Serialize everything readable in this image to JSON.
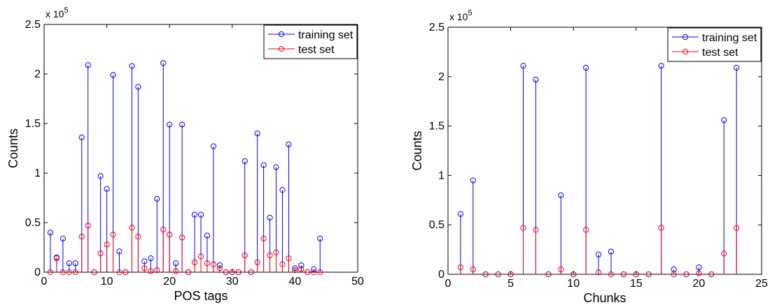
{
  "colors": {
    "training": "#0000ff",
    "test": "#ff0000",
    "axis": "#000000"
  },
  "chart_data": [
    {
      "type": "stem",
      "xlabel": "POS tags",
      "ylabel": "Counts",
      "xlim": [
        0,
        50
      ],
      "ylim": [
        0,
        250000
      ],
      "xticks": [
        0,
        10,
        20,
        30,
        40,
        50
      ],
      "xtick_labels": [
        "0",
        "10",
        "20",
        "30",
        "40",
        "50"
      ],
      "yticks": [
        0,
        50000,
        100000,
        150000,
        200000,
        250000
      ],
      "ytick_labels": [
        "0",
        "0.5",
        "1",
        "1.5",
        "2",
        "2.5"
      ],
      "y_multiplier_base": "x 10",
      "y_multiplier_exp": "5",
      "grid": false,
      "legend_position": "top-right",
      "series": [
        {
          "name": "training set",
          "color": "#0000ff",
          "x": [
            1,
            2,
            3,
            4,
            5,
            6,
            7,
            8,
            9,
            10,
            11,
            12,
            13,
            14,
            15,
            16,
            17,
            18,
            19,
            20,
            21,
            22,
            23,
            24,
            25,
            26,
            27,
            28,
            29,
            30,
            31,
            32,
            33,
            34,
            35,
            36,
            37,
            38,
            39,
            40,
            41,
            42,
            43,
            44
          ],
          "y": [
            40000,
            15000,
            34000,
            9000,
            9000,
            136000,
            209000,
            0,
            97000,
            84000,
            199000,
            21000,
            0,
            208000,
            187000,
            11000,
            14000,
            74000,
            211000,
            149000,
            9000,
            149000,
            0,
            58000,
            58000,
            37000,
            127000,
            7000,
            0,
            0,
            0,
            112000,
            0,
            140000,
            108000,
            55000,
            106000,
            83000,
            129000,
            4000,
            7000,
            0,
            3000,
            34000
          ]
        },
        {
          "name": "test set",
          "color": "#ff0000",
          "x": [
            1,
            2,
            3,
            4,
            5,
            6,
            7,
            8,
            9,
            10,
            11,
            12,
            13,
            14,
            15,
            16,
            17,
            18,
            19,
            20,
            21,
            22,
            23,
            24,
            25,
            26,
            27,
            28,
            29,
            30,
            31,
            32,
            33,
            34,
            35,
            36,
            37,
            38,
            39,
            40,
            41,
            42,
            43,
            44
          ],
          "y": [
            0,
            14000,
            0,
            0,
            0,
            36000,
            47000,
            0,
            19000,
            28000,
            38000,
            0,
            0,
            45000,
            36000,
            4000,
            1000,
            2000,
            43000,
            38000,
            1000,
            35000,
            0,
            10000,
            16000,
            9000,
            8000,
            4000,
            0,
            0,
            0,
            17000,
            0,
            10000,
            34000,
            17000,
            20000,
            8000,
            14000,
            2000,
            3000,
            0,
            0,
            0
          ]
        }
      ]
    },
    {
      "type": "stem",
      "xlabel": "Chunks",
      "ylabel": "Counts",
      "xlim": [
        0,
        25
      ],
      "ylim": [
        0,
        250000
      ],
      "xticks": [
        0,
        5,
        10,
        15,
        20,
        25
      ],
      "xtick_labels": [
        "0",
        "5",
        "10",
        "15",
        "20",
        "25"
      ],
      "yticks": [
        0,
        50000,
        100000,
        150000,
        200000,
        250000
      ],
      "ytick_labels": [
        "0",
        "0.5",
        "1",
        "1.5",
        "2",
        "2.5"
      ],
      "y_multiplier_base": "x 10",
      "y_multiplier_exp": "5",
      "grid": false,
      "legend_position": "top-right",
      "series": [
        {
          "name": "training set",
          "color": "#0000ff",
          "x": [
            1,
            2,
            3,
            4,
            5,
            6,
            7,
            8,
            9,
            10,
            11,
            12,
            13,
            14,
            15,
            16,
            17,
            18,
            19,
            20,
            21,
            22,
            23
          ],
          "y": [
            61000,
            95000,
            0,
            0,
            0,
            211000,
            197000,
            0,
            80000,
            0,
            209000,
            20000,
            23000,
            0,
            0,
            0,
            211000,
            5000,
            0,
            7000,
            0,
            156000,
            209000
          ]
        },
        {
          "name": "test set",
          "color": "#ff0000",
          "x": [
            1,
            2,
            3,
            4,
            5,
            6,
            7,
            8,
            9,
            10,
            11,
            12,
            13,
            14,
            15,
            16,
            17,
            18,
            19,
            20,
            21,
            22,
            23
          ],
          "y": [
            7000,
            5000,
            0,
            0,
            0,
            47000,
            45000,
            0,
            5000,
            0,
            45000,
            2000,
            0,
            0,
            0,
            0,
            47000,
            0,
            0,
            1000,
            0,
            21000,
            47000
          ]
        }
      ]
    }
  ]
}
